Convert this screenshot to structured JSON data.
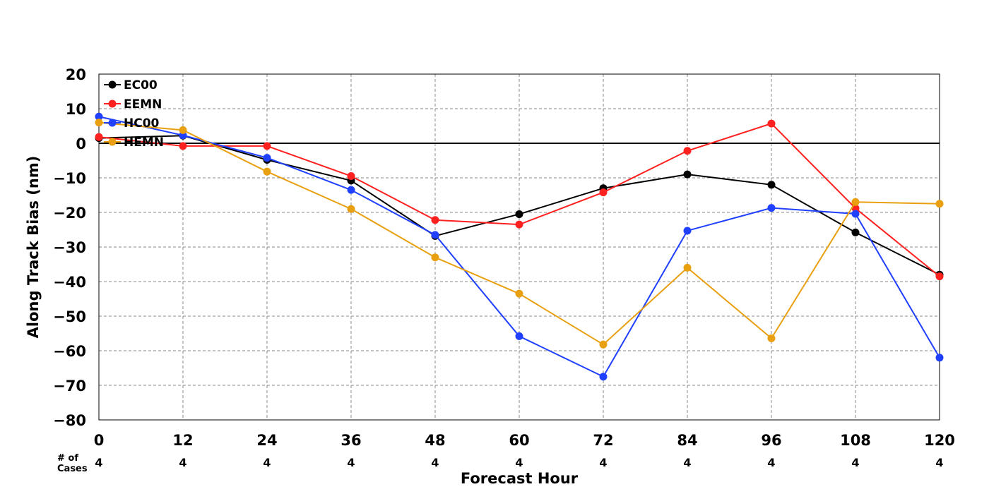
{
  "chart_data": {
    "type": "line",
    "xlabel": "Forecast Hour",
    "ylabel": "Along Track Bias (nm)",
    "x": [
      0,
      12,
      24,
      36,
      48,
      60,
      72,
      84,
      96,
      108,
      120
    ],
    "xticks": [
      "0",
      "12",
      "24",
      "36",
      "48",
      "60",
      "72",
      "84",
      "96",
      "108",
      "120"
    ],
    "xlim": [
      0,
      120
    ],
    "ylim": [
      -80,
      20
    ],
    "yticks": [
      "20",
      "10",
      "0",
      "−10",
      "−20",
      "−30",
      "−40",
      "−50",
      "−60",
      "−70",
      "−80"
    ],
    "ytick_values": [
      20,
      10,
      0,
      -10,
      -20,
      -30,
      -40,
      -50,
      -60,
      -70,
      -80
    ],
    "grid": true,
    "legend_position": "top-left",
    "zero_line": true,
    "cases_label": [
      "# of",
      "Cases"
    ],
    "cases": [
      "4",
      "4",
      "4",
      "4",
      "4",
      "4",
      "4",
      "4",
      "4",
      "4",
      "4"
    ],
    "series": [
      {
        "name": "EC00",
        "color": "#000000",
        "values": [
          1.5,
          2.2,
          -4.8,
          -10.8,
          -26.8,
          -20.5,
          -13.0,
          -9.0,
          -12.0,
          -25.8,
          -38.0
        ]
      },
      {
        "name": "EEMN",
        "color": "#ff2020",
        "values": [
          1.8,
          -0.8,
          -0.8,
          -9.5,
          -22.2,
          -23.5,
          -14.2,
          -2.2,
          5.7,
          -18.8,
          -38.5
        ]
      },
      {
        "name": "HC00",
        "color": "#2040ff",
        "values": [
          7.7,
          2.3,
          -4.2,
          -13.5,
          -26.5,
          -55.8,
          -67.5,
          -25.3,
          -18.7,
          -20.4,
          -62.0
        ]
      },
      {
        "name": "HEMN",
        "color": "#e8a010",
        "values": [
          6.0,
          3.8,
          -8.2,
          -19.0,
          -33.0,
          -43.5,
          -58.2,
          -36.0,
          -56.4,
          -17.0,
          -17.5
        ]
      }
    ]
  }
}
